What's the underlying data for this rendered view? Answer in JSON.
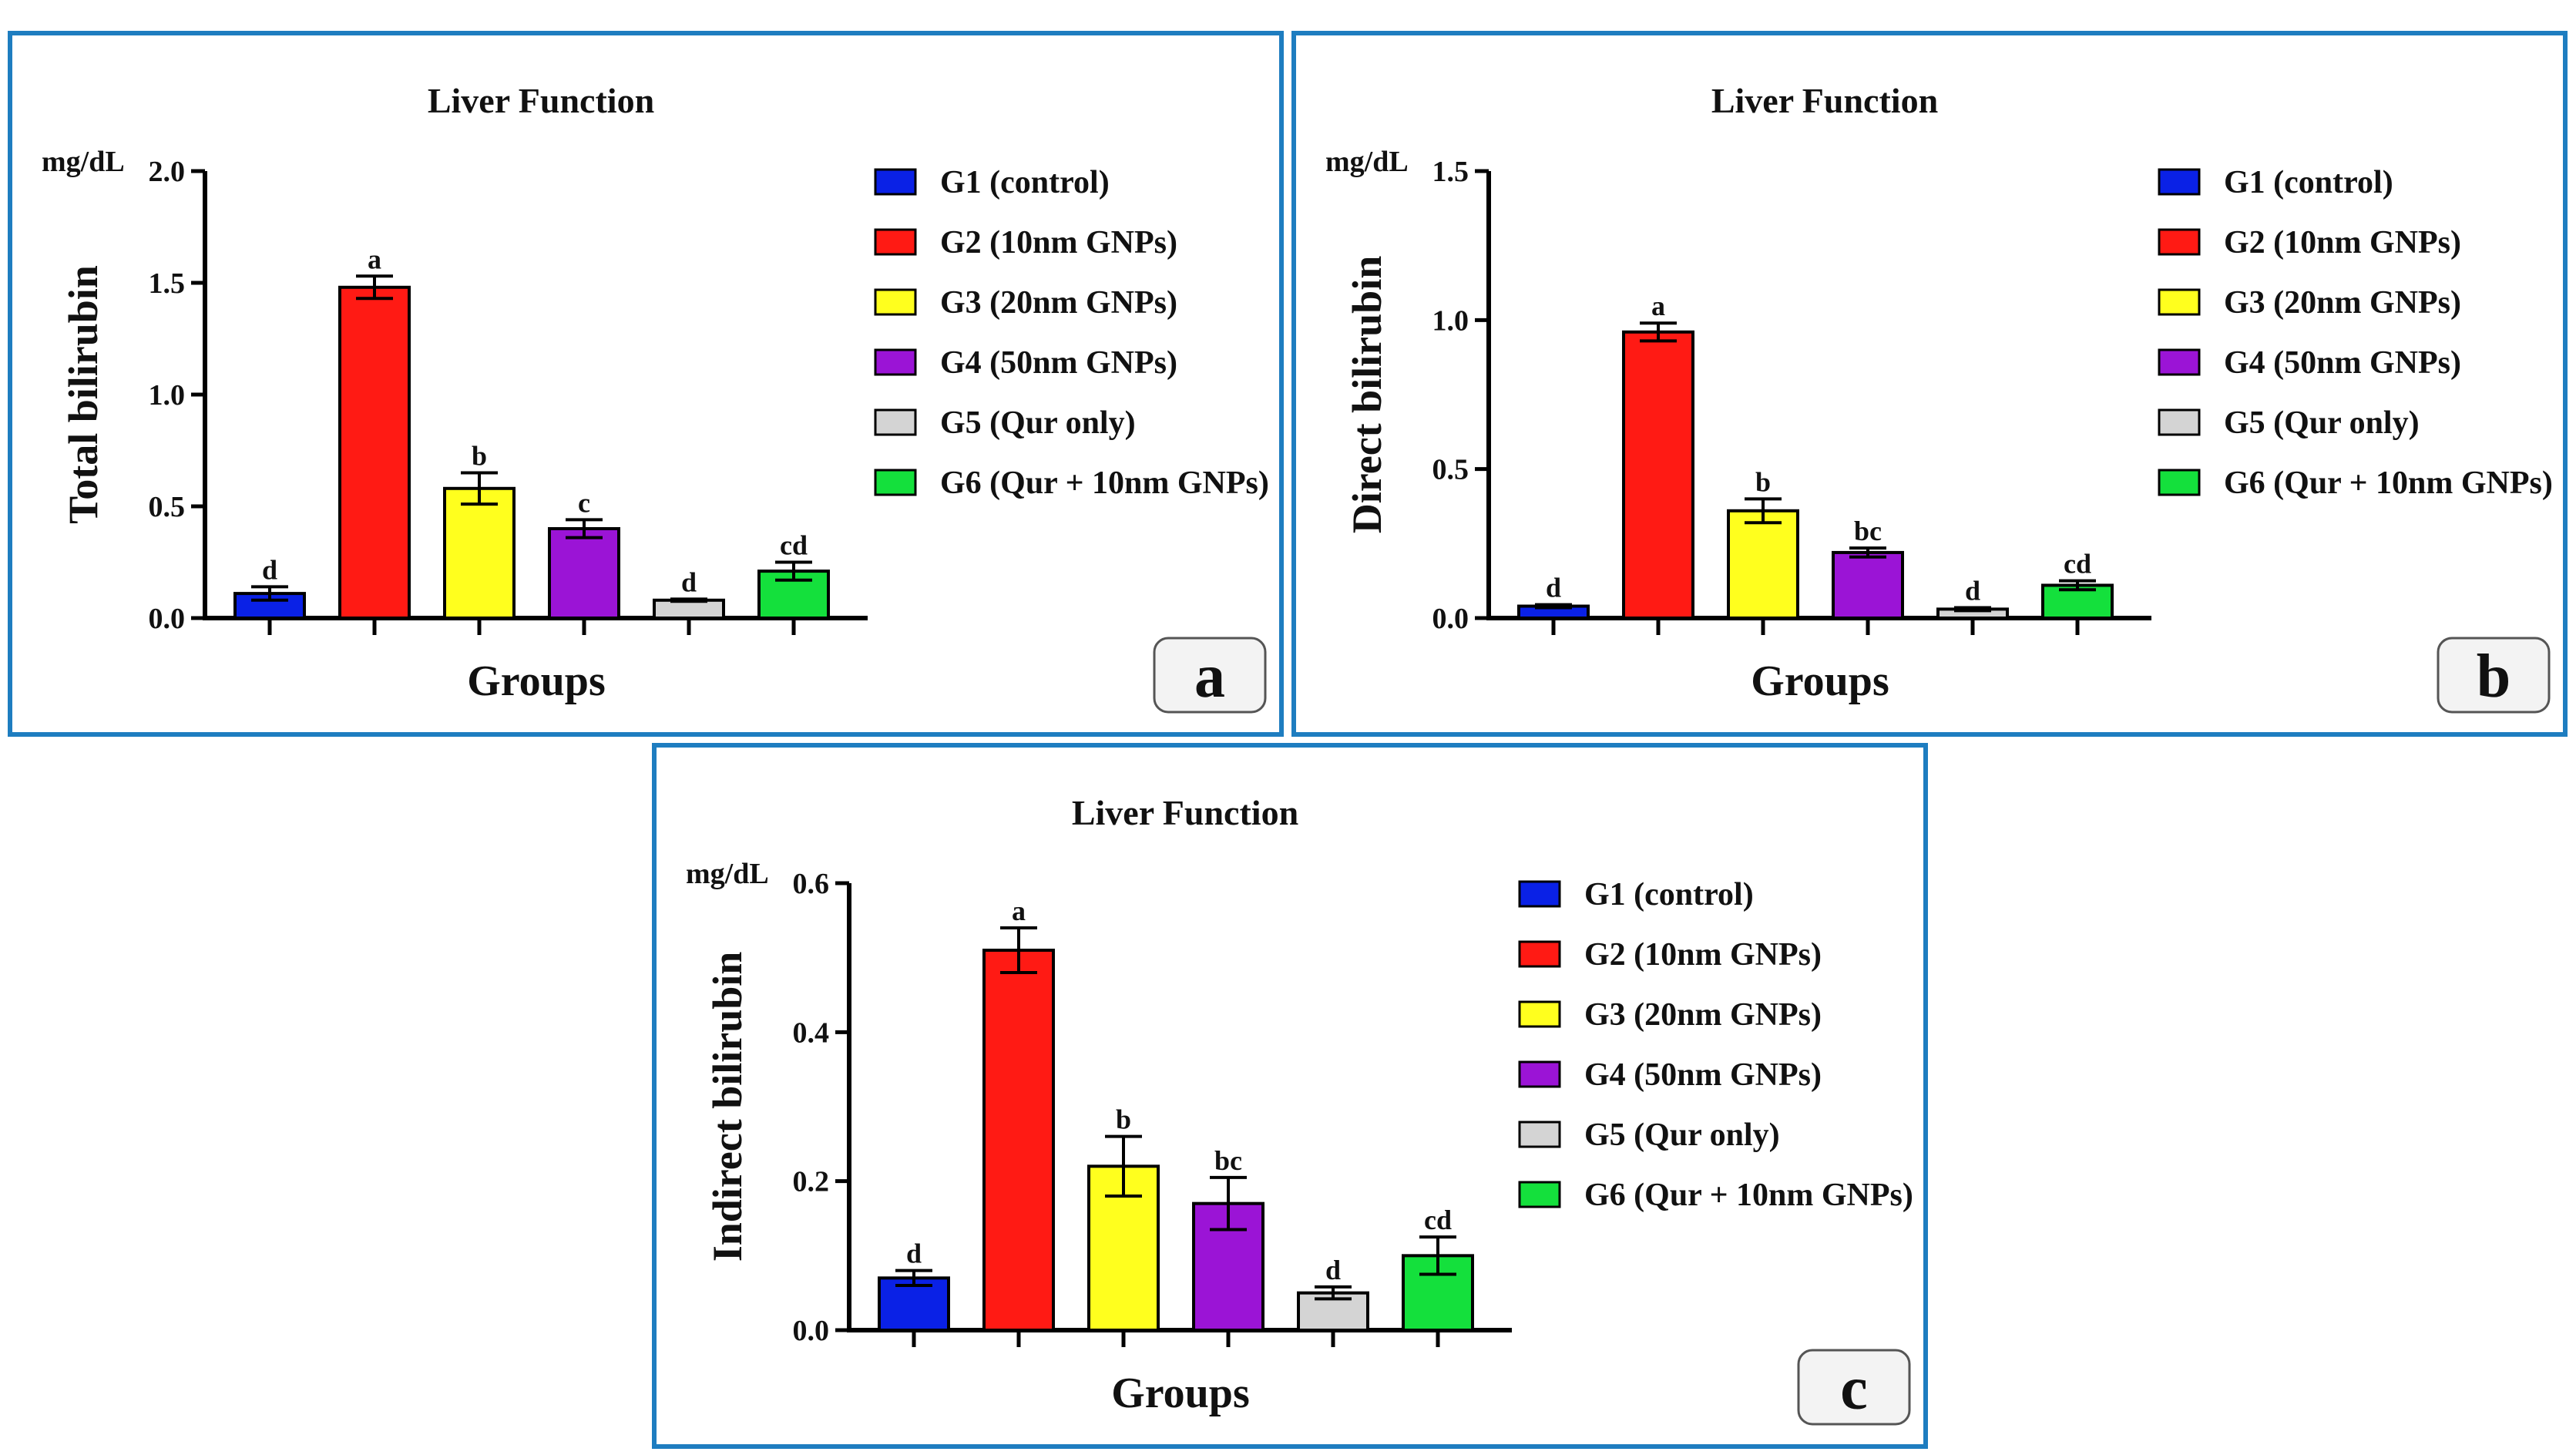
{
  "chart_data": [
    {
      "type": "bar",
      "panel_label": "a",
      "title": "Liver Function",
      "unit_label": "mg/dL",
      "ylabel": "Total bilirubin",
      "xlabel": "Groups",
      "ylim": [
        0,
        2.0
      ],
      "yticks": [
        0.0,
        0.5,
        1.0,
        1.5,
        2.0
      ],
      "tick_format": 1,
      "categories": [
        "G1 (control)",
        "G2 (10nm GNPs)",
        "G3 (20nm GNPs)",
        "G4 (50nm GNPs)",
        "G5 (Qur only)",
        "G6 (Qur + 10nm GNPs)"
      ],
      "values": [
        0.11,
        1.48,
        0.58,
        0.4,
        0.08,
        0.21
      ],
      "errors": [
        0.03,
        0.05,
        0.07,
        0.04,
        0.005,
        0.04
      ],
      "significance": [
        "d",
        "a",
        "b",
        "c",
        "d",
        "cd"
      ],
      "legend": "right"
    },
    {
      "type": "bar",
      "panel_label": "b",
      "title": "Liver Function",
      "unit_label": "mg/dL",
      "ylabel": "Direct bilirubin",
      "xlabel": "Groups",
      "ylim": [
        0,
        1.5
      ],
      "yticks": [
        0.0,
        0.5,
        1.0,
        1.5
      ],
      "tick_format": 1,
      "categories": [
        "G1 (control)",
        "G2 (10nm GNPs)",
        "G3 (20nm GNPs)",
        "G4 (50nm GNPs)",
        "G5 (Qur only)",
        "G6 (Qur + 10nm GNPs)"
      ],
      "values": [
        0.04,
        0.96,
        0.36,
        0.22,
        0.03,
        0.11
      ],
      "errors": [
        0.005,
        0.03,
        0.04,
        0.015,
        0.005,
        0.015
      ],
      "significance": [
        "d",
        "a",
        "b",
        "bc",
        "d",
        "cd"
      ],
      "legend": "right"
    },
    {
      "type": "bar",
      "panel_label": "c",
      "title": "Liver Function",
      "unit_label": "mg/dL",
      "ylabel": "Indirect bilirubin",
      "xlabel": "Groups",
      "ylim": [
        0,
        0.6
      ],
      "yticks": [
        0.0,
        0.2,
        0.4,
        0.6
      ],
      "tick_format": 1,
      "categories": [
        "G1 (control)",
        "G2 (10nm GNPs)",
        "G3 (20nm GNPs)",
        "G4 (50nm GNPs)",
        "G5 (Qur only)",
        "G6 (Qur + 10nm GNPs)"
      ],
      "values": [
        0.07,
        0.51,
        0.22,
        0.17,
        0.05,
        0.1
      ],
      "errors": [
        0.01,
        0.03,
        0.04,
        0.035,
        0.008,
        0.025
      ],
      "significance": [
        "d",
        "a",
        "b",
        "bc",
        "d",
        "cd"
      ],
      "legend": "right"
    }
  ],
  "group_colors": [
    "#0a21e6",
    "#ff1a14",
    "#ffff1e",
    "#9b14d6",
    "#d4d4d4",
    "#14e03c"
  ]
}
